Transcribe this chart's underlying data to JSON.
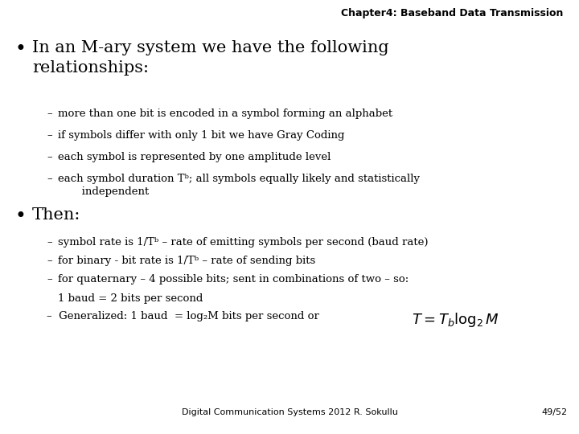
{
  "background_color": "#ffffff",
  "header": "Chapter4: Baseband Data Transmission",
  "header_fontsize": 9,
  "bullet1_fontsize": 15,
  "sub_bullet_fontsize": 9.5,
  "bullet2_fontsize": 15,
  "footer_fontsize": 8,
  "footer_left": "Digital Communication Systems 2012 R. Sokullu",
  "footer_right": "49/52"
}
